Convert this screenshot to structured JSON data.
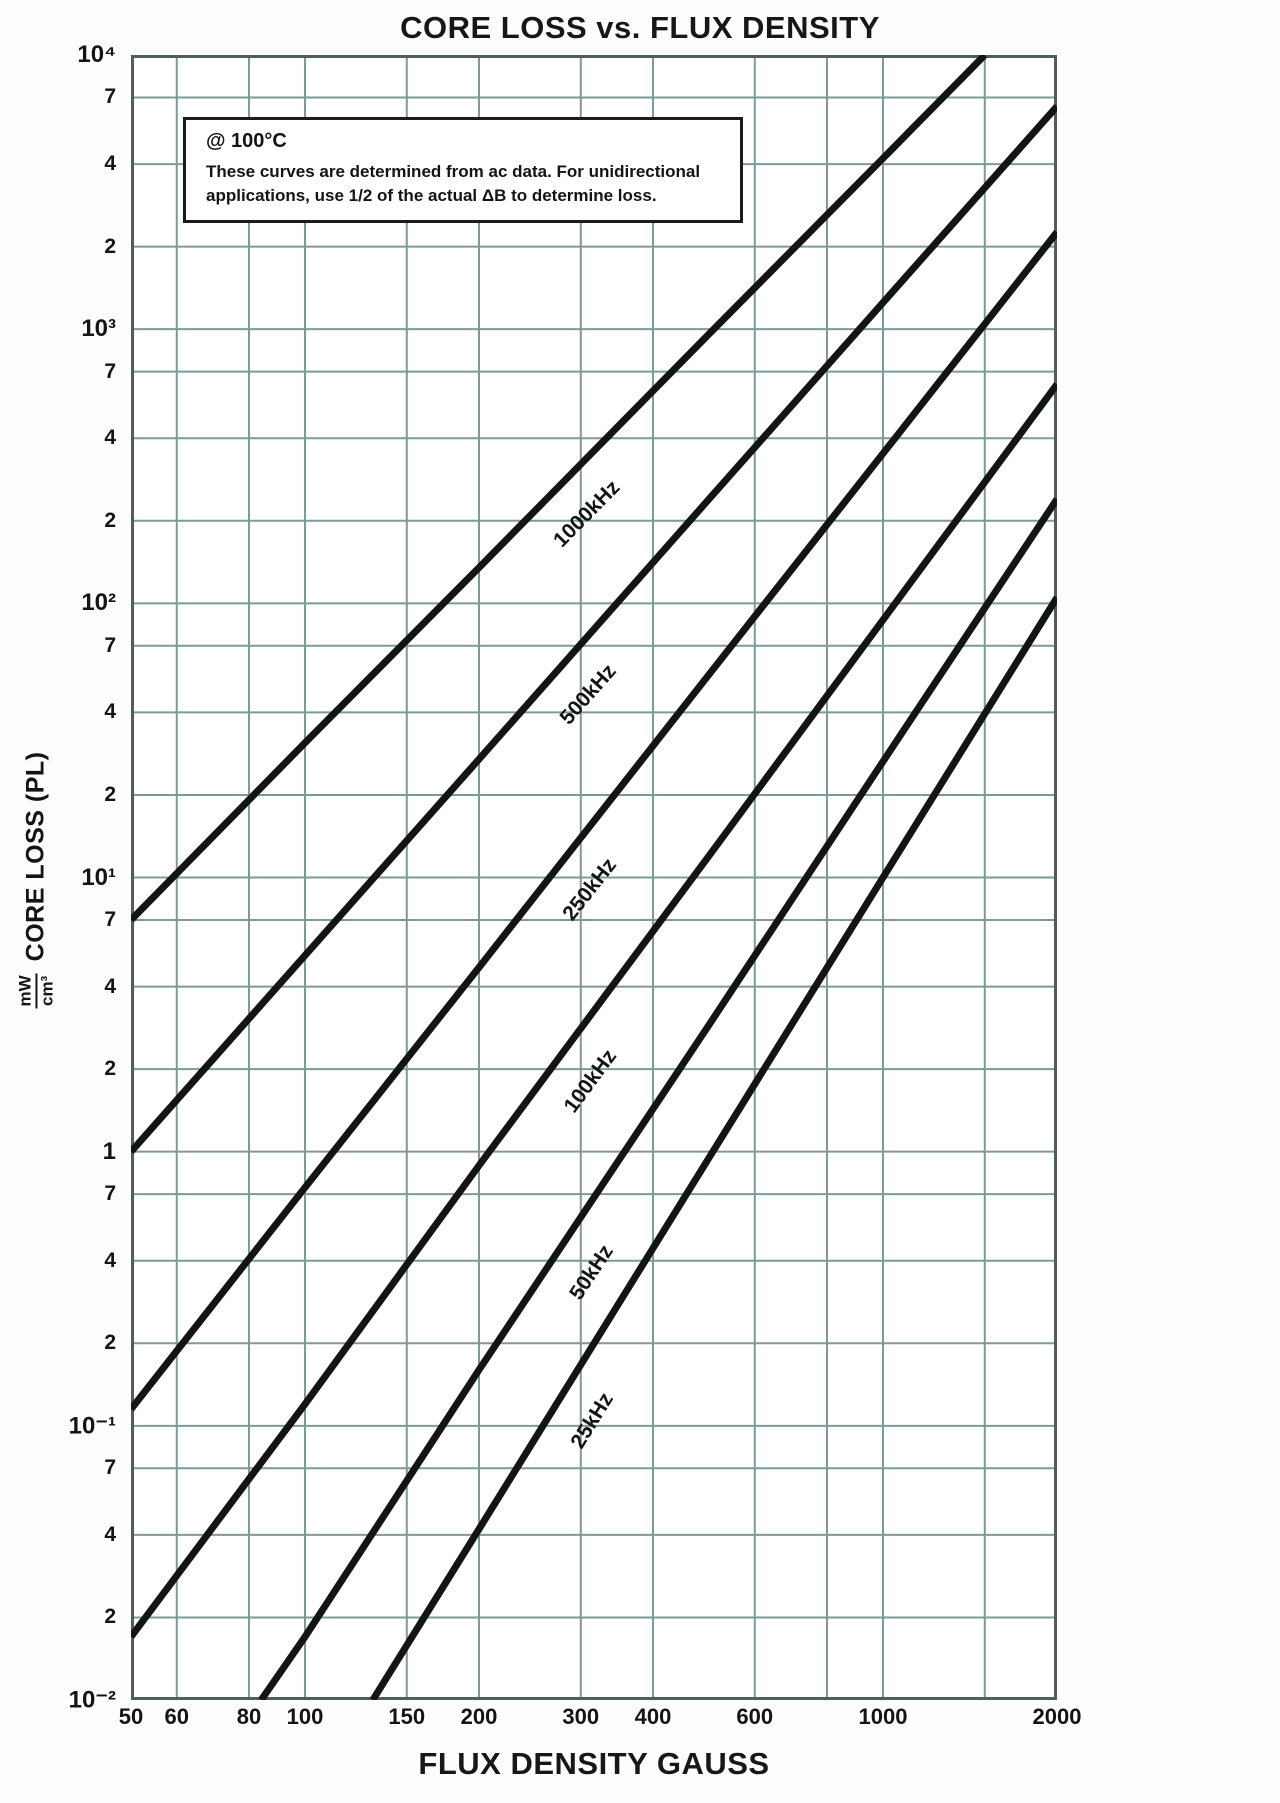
{
  "colors": {
    "grid": "#7e9a97",
    "frame": "#4e5f5d",
    "curve": "#141414",
    "text": "#141414",
    "plot_bg": "#ffffff"
  },
  "chart_data": {
    "type": "line",
    "title": "CORE LOSS vs. FLUX DENSITY",
    "xlabel": "FLUX DENSITY GAUSS",
    "ylabel": "CORE LOSS (PL)",
    "ylabel_unit": {
      "numerator": "mW",
      "denominator": "cm³"
    },
    "x_scale": "log",
    "y_scale": "log",
    "xlim": [
      50,
      2000
    ],
    "ylim": [
      0.01,
      10000
    ],
    "grid": true,
    "legend": "frequency labels rotated along each curve",
    "annotation": {
      "temperature": "@ 100°C",
      "line1": "These curves are determined from ac data. For unidirectional",
      "line2": "applications, use 1/2 of the actual ΔB to determine loss."
    },
    "x_ticks": [
      {
        "v": 50,
        "label": "50"
      },
      {
        "v": 60,
        "label": "60"
      },
      {
        "v": 80,
        "label": "80"
      },
      {
        "v": 100,
        "label": "100"
      },
      {
        "v": 150,
        "label": "150"
      },
      {
        "v": 200,
        "label": "200"
      },
      {
        "v": 300,
        "label": "300"
      },
      {
        "v": 400,
        "label": "400"
      },
      {
        "v": 600,
        "label": "600"
      },
      {
        "v": 1000,
        "label": "1000"
      },
      {
        "v": 2000,
        "label": "2000"
      }
    ],
    "x_gridlines": [
      50,
      60,
      80,
      100,
      150,
      200,
      300,
      400,
      600,
      800,
      1000,
      1500,
      2000
    ],
    "y_ticks": [
      {
        "v": 10000,
        "label": "10⁴",
        "major": true
      },
      {
        "v": 7000,
        "label": "7",
        "major": false
      },
      {
        "v": 4000,
        "label": "4",
        "major": false
      },
      {
        "v": 2000,
        "label": "2",
        "major": false
      },
      {
        "v": 1000,
        "label": "10³",
        "major": true
      },
      {
        "v": 700,
        "label": "7",
        "major": false
      },
      {
        "v": 400,
        "label": "4",
        "major": false
      },
      {
        "v": 200,
        "label": "2",
        "major": false
      },
      {
        "v": 100,
        "label": "10²",
        "major": true
      },
      {
        "v": 70,
        "label": "7",
        "major": false
      },
      {
        "v": 40,
        "label": "4",
        "major": false
      },
      {
        "v": 20,
        "label": "2",
        "major": false
      },
      {
        "v": 10,
        "label": "10¹",
        "major": true
      },
      {
        "v": 7,
        "label": "7",
        "major": false
      },
      {
        "v": 4,
        "label": "4",
        "major": false
      },
      {
        "v": 2,
        "label": "2",
        "major": false
      },
      {
        "v": 1,
        "label": "1",
        "major": true
      },
      {
        "v": 0.7,
        "label": "7",
        "major": false
      },
      {
        "v": 0.4,
        "label": "4",
        "major": false
      },
      {
        "v": 0.2,
        "label": "2",
        "major": false
      },
      {
        "v": 0.1,
        "label": "10⁻¹",
        "major": true
      },
      {
        "v": 0.07,
        "label": "7",
        "major": false
      },
      {
        "v": 0.04,
        "label": "4",
        "major": false
      },
      {
        "v": 0.02,
        "label": "2",
        "major": false
      },
      {
        "v": 0.01,
        "label": "10⁻²",
        "major": true
      }
    ],
    "series": [
      {
        "name": "1000kHz",
        "frequency_khz": 1000,
        "label_at_gauss": 275,
        "points": [
          [
            50,
            7
          ],
          [
            100,
            31
          ],
          [
            200,
            135
          ],
          [
            500,
            960
          ],
          [
            1000,
            4200
          ],
          [
            1500,
            10000
          ]
        ]
      },
      {
        "name": "500kHz",
        "frequency_khz": 500,
        "label_at_gauss": 275,
        "points": [
          [
            50,
            1
          ],
          [
            100,
            5.2
          ],
          [
            200,
            27
          ],
          [
            500,
            240
          ],
          [
            1000,
            1250
          ],
          [
            2000,
            6500
          ]
        ]
      },
      {
        "name": "250kHz",
        "frequency_khz": 250,
        "label_at_gauss": 275,
        "points": [
          [
            50,
            0.115
          ],
          [
            100,
            0.74
          ],
          [
            200,
            4.7
          ],
          [
            500,
            55
          ],
          [
            1000,
            352
          ],
          [
            2000,
            2260
          ]
        ]
      },
      {
        "name": "100kHz",
        "frequency_khz": 100,
        "label_at_gauss": 275,
        "points": [
          [
            50,
            0.017
          ],
          [
            100,
            0.12
          ],
          [
            200,
            0.89
          ],
          [
            500,
            12
          ],
          [
            1000,
            87
          ],
          [
            2000,
            630
          ]
        ]
      },
      {
        "name": "50kHz",
        "frequency_khz": 50,
        "label_at_gauss": 275,
        "points": [
          [
            84,
            0.01
          ],
          [
            100,
            0.017
          ],
          [
            200,
            0.16
          ],
          [
            500,
            2.9
          ],
          [
            1000,
            26.5
          ],
          [
            2000,
            240
          ]
        ]
      },
      {
        "name": "25kHz",
        "frequency_khz": 25,
        "label_at_gauss": 275,
        "points": [
          [
            131,
            0.01
          ],
          [
            200,
            0.042
          ],
          [
            500,
            0.95
          ],
          [
            1000,
            10
          ],
          [
            2000,
            105
          ]
        ]
      }
    ]
  }
}
